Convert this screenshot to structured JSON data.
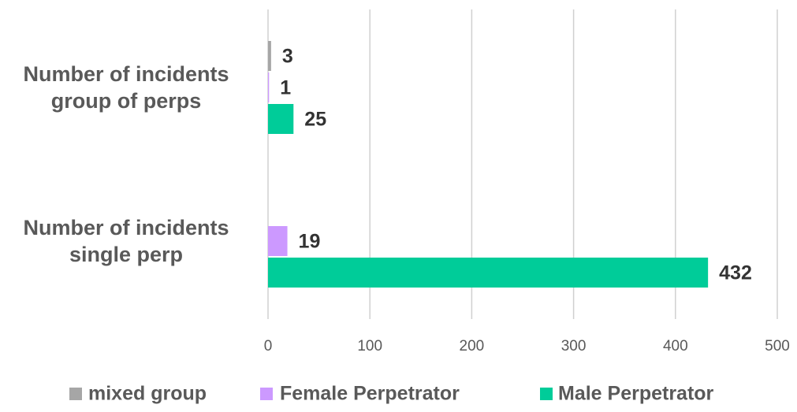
{
  "chart_data": {
    "type": "hbar",
    "categories": [
      "Number of incidents group of perps",
      "Number of incidents single perp"
    ],
    "series": [
      {
        "name": "mixed group",
        "color": "#a6a6a6",
        "values": [
          3,
          null
        ]
      },
      {
        "name": "Female Perpetrator",
        "color": "#cc99ff",
        "values": [
          1,
          19
        ]
      },
      {
        "name": "Male Perpetrator",
        "color": "#00cc99",
        "values": [
          25,
          432
        ]
      }
    ],
    "xlim": [
      0,
      500
    ],
    "xticks": [
      0,
      100,
      200,
      300,
      400,
      500
    ],
    "grid": true,
    "legend": "bottom"
  }
}
